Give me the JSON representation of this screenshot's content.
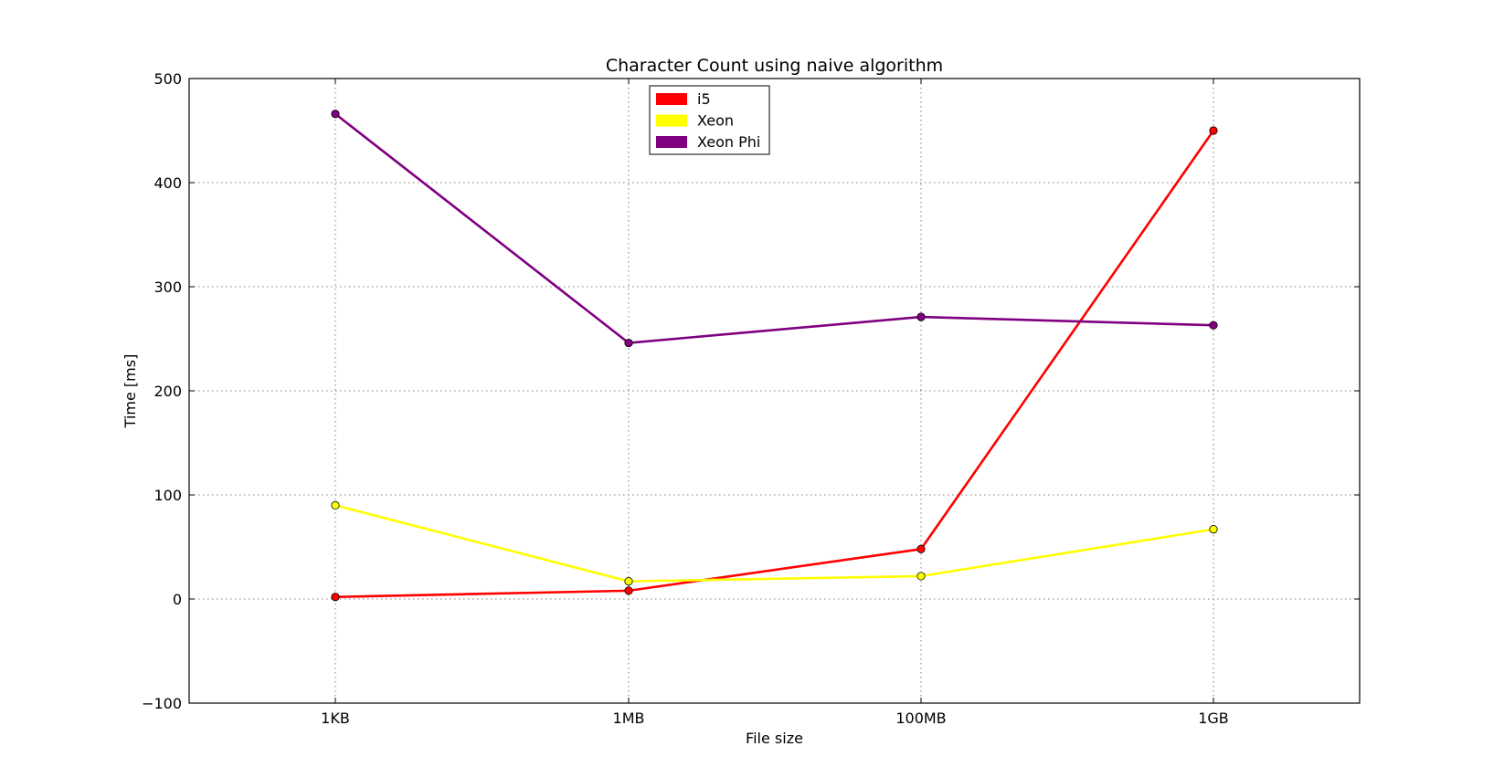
{
  "chart_data": {
    "type": "line",
    "title": "Character Count using naive algorithm",
    "xlabel": "File size",
    "ylabel": "Time [ms]",
    "categories": [
      "1KB",
      "1MB",
      "100MB",
      "1GB"
    ],
    "ylim": [
      -100,
      500
    ],
    "yticks": [
      -100,
      0,
      100,
      200,
      300,
      400,
      500
    ],
    "ytick_labels": [
      "−100",
      "0",
      "100",
      "200",
      "300",
      "400",
      "500"
    ],
    "grid": true,
    "legend_position": "top-center",
    "series": [
      {
        "name": "i5",
        "color": "#ff0000",
        "values": [
          2,
          8,
          48,
          450
        ]
      },
      {
        "name": "Xeon",
        "color": "#ffff00",
        "values": [
          90,
          17,
          22,
          67
        ]
      },
      {
        "name": "Xeon Phi",
        "color": "#800080",
        "values": [
          466,
          246,
          271,
          263
        ]
      }
    ]
  }
}
